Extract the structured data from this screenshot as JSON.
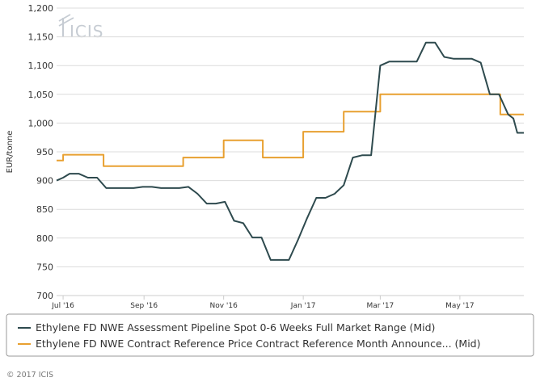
{
  "brand": {
    "logo": "ICIS",
    "copyright": "© 2017 ICIS"
  },
  "colors": {
    "series_spot": "#2e4a4e",
    "series_contract": "#e8a030",
    "grid": "#dcdcdc",
    "axis": "#cccccc",
    "legend_border": "#999999"
  },
  "chart_data": {
    "type": "line",
    "ylabel": "EUR/tonne",
    "ylim": [
      700,
      1200
    ],
    "y_ticks": [
      "700",
      "750",
      "800",
      "850",
      "900",
      "950",
      "1,000",
      "1,050",
      "1,100",
      "1,150",
      "1,200"
    ],
    "x_range": [
      "2016-06-26",
      "2017-06-19"
    ],
    "x_ticks": [
      {
        "date": "2016-07-01",
        "label": "Jul '16"
      },
      {
        "date": "2016-09-01",
        "label": "Sep '16"
      },
      {
        "date": "2016-11-01",
        "label": "Nov '16"
      },
      {
        "date": "2017-01-01",
        "label": "Jan '17"
      },
      {
        "date": "2017-03-01",
        "label": "Mar '17"
      },
      {
        "date": "2017-05-01",
        "label": "May '17"
      }
    ],
    "grid": "horizontal",
    "legend_position": "bottom",
    "series": [
      {
        "name": "Ethylene FD NWE Assessment Pipeline Spot 0-6 Weeks Full Market Range (Mid)",
        "step": false,
        "points": [
          [
            "2016-06-26",
            900
          ],
          [
            "2016-07-01",
            905
          ],
          [
            "2016-07-06",
            912
          ],
          [
            "2016-07-13",
            912
          ],
          [
            "2016-07-20",
            905
          ],
          [
            "2016-07-27",
            905
          ],
          [
            "2016-08-03",
            887
          ],
          [
            "2016-08-10",
            887
          ],
          [
            "2016-08-17",
            887
          ],
          [
            "2016-08-24",
            887
          ],
          [
            "2016-08-31",
            889
          ],
          [
            "2016-09-07",
            889
          ],
          [
            "2016-09-14",
            887
          ],
          [
            "2016-09-21",
            887
          ],
          [
            "2016-09-28",
            887
          ],
          [
            "2016-10-05",
            889
          ],
          [
            "2016-10-12",
            877
          ],
          [
            "2016-10-19",
            860
          ],
          [
            "2016-10-26",
            860
          ],
          [
            "2016-11-02",
            863
          ],
          [
            "2016-11-09",
            830
          ],
          [
            "2016-11-16",
            826
          ],
          [
            "2016-11-23",
            801
          ],
          [
            "2016-11-30",
            801
          ],
          [
            "2016-12-07",
            762
          ],
          [
            "2016-12-14",
            762
          ],
          [
            "2016-12-21",
            762
          ],
          [
            "2016-12-28",
            797
          ],
          [
            "2017-01-04",
            835
          ],
          [
            "2017-01-11",
            870
          ],
          [
            "2017-01-18",
            870
          ],
          [
            "2017-01-25",
            877
          ],
          [
            "2017-02-01",
            892
          ],
          [
            "2017-02-08",
            940
          ],
          [
            "2017-02-15",
            944
          ],
          [
            "2017-02-22",
            944
          ],
          [
            "2017-03-01",
            1100
          ],
          [
            "2017-03-08",
            1107
          ],
          [
            "2017-03-15",
            1107
          ],
          [
            "2017-03-22",
            1107
          ],
          [
            "2017-03-29",
            1107
          ],
          [
            "2017-04-05",
            1140
          ],
          [
            "2017-04-12",
            1140
          ],
          [
            "2017-04-19",
            1115
          ],
          [
            "2017-04-26",
            1112
          ],
          [
            "2017-05-03",
            1112
          ],
          [
            "2017-05-10",
            1112
          ],
          [
            "2017-05-17",
            1105
          ],
          [
            "2017-05-24",
            1050
          ],
          [
            "2017-05-31",
            1050
          ],
          [
            "2017-06-07",
            1015
          ],
          [
            "2017-06-11",
            1008
          ],
          [
            "2017-06-14",
            983
          ],
          [
            "2017-06-19",
            983
          ]
        ]
      },
      {
        "name": "Ethylene FD NWE Contract Reference Price Contract Reference Month Announce... (Mid)",
        "step": true,
        "points": [
          [
            "2016-06-26",
            935
          ],
          [
            "2016-07-01",
            945
          ],
          [
            "2016-08-01",
            925
          ],
          [
            "2016-10-01",
            940
          ],
          [
            "2016-11-01",
            970
          ],
          [
            "2016-12-01",
            940
          ],
          [
            "2017-01-01",
            985
          ],
          [
            "2017-02-01",
            1020
          ],
          [
            "2017-03-01",
            1050
          ],
          [
            "2017-06-01",
            1015
          ],
          [
            "2017-06-19",
            1015
          ]
        ]
      }
    ]
  }
}
